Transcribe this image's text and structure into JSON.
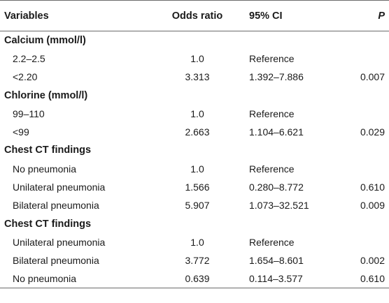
{
  "table": {
    "headers": {
      "variables": "Variables",
      "odds_ratio": "Odds ratio",
      "ci": "95% CI",
      "p": "P"
    },
    "sections": [
      {
        "title": "Calcium (mmol/l)",
        "rows": [
          {
            "variable": "2.2–2.5",
            "odds_ratio": "1.0",
            "ci": "Reference",
            "p": ""
          },
          {
            "variable": "<2.20",
            "odds_ratio": "3.313",
            "ci": "1.392–7.886",
            "p": "0.007"
          }
        ]
      },
      {
        "title": "Chlorine (mmol/l)",
        "rows": [
          {
            "variable": "99–110",
            "odds_ratio": "1.0",
            "ci": "Reference",
            "p": ""
          },
          {
            "variable": "<99",
            "odds_ratio": "2.663",
            "ci": "1.104–6.621",
            "p": "0.029"
          }
        ]
      },
      {
        "title": "Chest CT findings",
        "rows": [
          {
            "variable": "No pneumonia",
            "odds_ratio": "1.0",
            "ci": "Reference",
            "p": ""
          },
          {
            "variable": "Unilateral pneumonia",
            "odds_ratio": "1.566",
            "ci": "0.280–8.772",
            "p": "0.610"
          },
          {
            "variable": "Bilateral pneumonia",
            "odds_ratio": "5.907",
            "ci": "1.073–32.521",
            "p": "0.009"
          }
        ]
      },
      {
        "title": "Chest CT findings",
        "rows": [
          {
            "variable": "Unilateral pneumonia",
            "odds_ratio": "1.0",
            "ci": "Reference",
            "p": ""
          },
          {
            "variable": "Bilateral pneumonia",
            "odds_ratio": "3.772",
            "ci": "1.654–8.601",
            "p": "0.002"
          },
          {
            "variable": "No pneumonia",
            "odds_ratio": "0.639",
            "ci": "0.114–3.577",
            "p": "0.610"
          }
        ]
      }
    ]
  }
}
